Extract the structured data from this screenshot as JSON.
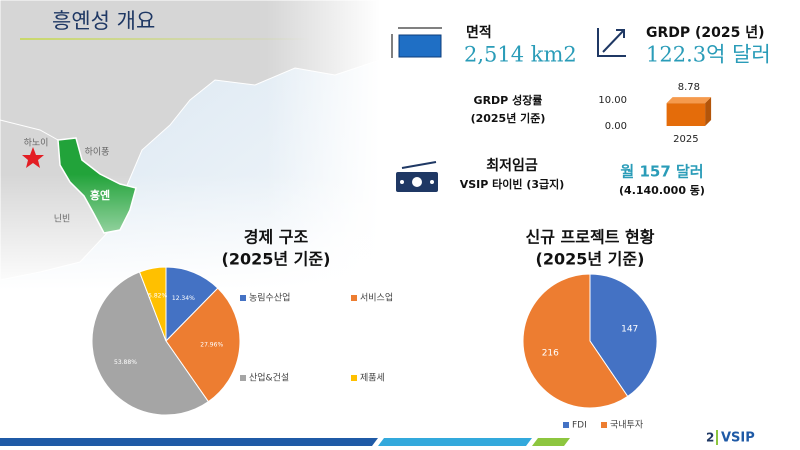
{
  "header": {
    "title": "흥옌성 개요"
  },
  "map": {
    "labels": [
      "하노이",
      "하이퐁",
      "흥옌",
      "닌빈"
    ]
  },
  "stats": {
    "area": {
      "label": "면적",
      "value": "2,514 km2"
    },
    "grdp": {
      "label": "GRDP (2025 년)",
      "value": "122.3억 달러"
    },
    "growth": {
      "label": "GRDP 성장률",
      "note": "(2025년 기준)"
    },
    "wage": {
      "label": "최저임금",
      "note": "VSIP 타이빈 (3급지)",
      "value": "월 157 달러",
      "value_note": "(4.140.000 동)"
    }
  },
  "chart_data": [
    {
      "type": "bar",
      "categories": [
        "2025"
      ],
      "values": [
        8.78
      ],
      "color": "#e46c0a",
      "ylim": [
        0,
        10
      ],
      "yticks": [
        {
          "value": 0,
          "label": "0.00"
        },
        {
          "value": 10,
          "label": "10.00"
        }
      ]
    },
    {
      "type": "pie",
      "title": "경제 구조",
      "subtitle": "(2025년 기준)",
      "categories": [
        "농림수산업",
        "서비스업",
        "산업&건설",
        "제품세"
      ],
      "values": [
        12.34,
        27.96,
        53.88,
        5.82
      ],
      "value_labels": [
        "12.34%",
        "27.96%",
        "53.88%",
        "5.82%"
      ],
      "colors": [
        "#4472c4",
        "#ed7d31",
        "#a5a5a5",
        "#ffc000"
      ]
    },
    {
      "type": "pie",
      "title": "신규 프로젝트 현황",
      "subtitle": "(2025년 기준)",
      "categories": [
        "FDI",
        "국내투자"
      ],
      "values": [
        147,
        216
      ],
      "colors": [
        "#4472c4",
        "#ed7d31"
      ]
    }
  ],
  "footer": {
    "page": "2",
    "logo": "VSIP"
  }
}
